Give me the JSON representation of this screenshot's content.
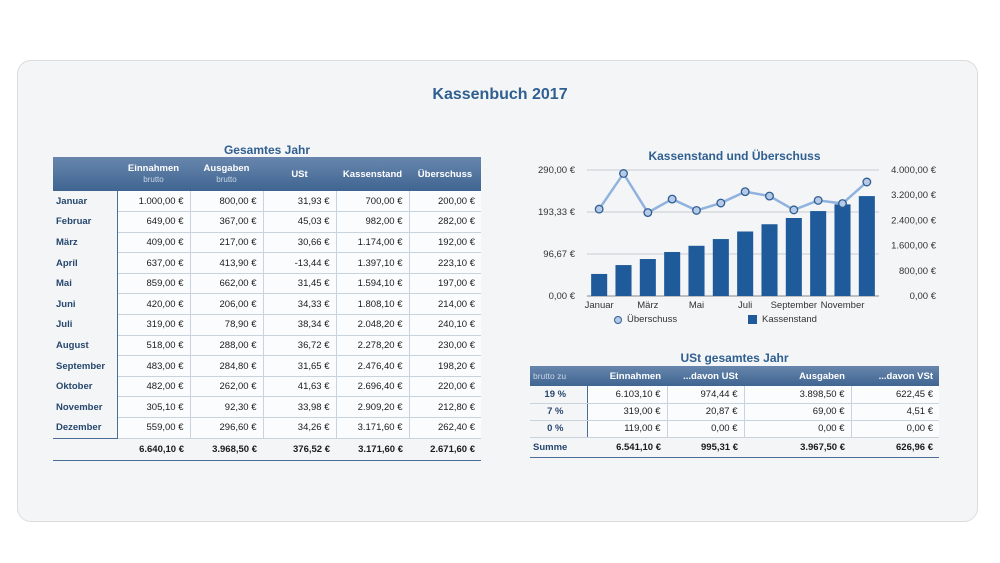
{
  "title": "Kassenbuch 2017",
  "year_table": {
    "title": "Gesamtes Jahr",
    "headers": [
      {
        "label": "",
        "sub": ""
      },
      {
        "label": "Einnahmen",
        "sub": "brutto"
      },
      {
        "label": "Ausgaben",
        "sub": "brutto"
      },
      {
        "label": "USt",
        "sub": ""
      },
      {
        "label": "Kassenstand",
        "sub": ""
      },
      {
        "label": "Überschuss",
        "sub": ""
      }
    ],
    "rows": [
      [
        "Januar",
        "1.000,00 €",
        "800,00 €",
        "31,93 €",
        "700,00 €",
        "200,00 €"
      ],
      [
        "Februar",
        "649,00 €",
        "367,00 €",
        "45,03 €",
        "982,00 €",
        "282,00 €"
      ],
      [
        "März",
        "409,00 €",
        "217,00 €",
        "30,66 €",
        "1.174,00 €",
        "192,00 €"
      ],
      [
        "April",
        "637,00 €",
        "413,90 €",
        "-13,44 €",
        "1.397,10 €",
        "223,10 €"
      ],
      [
        "Mai",
        "859,00 €",
        "662,00 €",
        "31,45 €",
        "1.594,10 €",
        "197,00 €"
      ],
      [
        "Juni",
        "420,00 €",
        "206,00 €",
        "34,33 €",
        "1.808,10 €",
        "214,00 €"
      ],
      [
        "Juli",
        "319,00 €",
        "78,90 €",
        "38,34 €",
        "2.048,20 €",
        "240,10 €"
      ],
      [
        "August",
        "518,00 €",
        "288,00 €",
        "36,72 €",
        "2.278,20 €",
        "230,00 €"
      ],
      [
        "September",
        "483,00 €",
        "284,80 €",
        "31,65 €",
        "2.476,40 €",
        "198,20 €"
      ],
      [
        "Oktober",
        "482,00 €",
        "262,00 €",
        "41,63 €",
        "2.696,40 €",
        "220,00 €"
      ],
      [
        "November",
        "305,10 €",
        "92,30 €",
        "33,98 €",
        "2.909,20 €",
        "212,80 €"
      ],
      [
        "Dezember",
        "559,00 €",
        "296,60 €",
        "34,26 €",
        "3.171,60 €",
        "262,40 €"
      ]
    ],
    "totals": [
      "",
      "6.640,10 €",
      "3.968,50 €",
      "376,52 €",
      "3.171,60 €",
      "2.671,60 €"
    ]
  },
  "ust_table": {
    "title": "USt gesamtes Jahr",
    "headers": [
      "brutto zu",
      "Einnahmen",
      "...davon USt",
      "Ausgaben",
      "...davon VSt"
    ],
    "rows": [
      [
        "19 %",
        "6.103,10 €",
        "974,44 €",
        "3.898,50 €",
        "622,45 €"
      ],
      [
        "7 %",
        "319,00 €",
        "20,87 €",
        "69,00 €",
        "4,51 €"
      ],
      [
        "0 %",
        "119,00 €",
        "0,00 €",
        "0,00 €",
        "0,00 €"
      ]
    ],
    "totals": [
      "Summe",
      "6.541,10 €",
      "995,31 €",
      "3.967,50 €",
      "626,96 €"
    ]
  },
  "chart_data": {
    "type": "bar",
    "title": "Kassenstand und Überschuss",
    "categories": [
      "Januar",
      "Februar",
      "März",
      "April",
      "Mai",
      "Juni",
      "Juli",
      "August",
      "September",
      "Oktober",
      "November",
      "Dezember"
    ],
    "x_tick_labels": [
      "Januar",
      "März",
      "Mai",
      "Juli",
      "September",
      "November"
    ],
    "series": [
      {
        "name": "Überschuss",
        "type": "line",
        "axis": "left",
        "color": "#8fb2de",
        "values": [
          200.0,
          282.0,
          192.0,
          223.1,
          197.0,
          214.0,
          240.1,
          230.0,
          198.2,
          220.0,
          212.8,
          262.4
        ]
      },
      {
        "name": "Kassenstand",
        "type": "bar",
        "axis": "right",
        "color": "#1f5b9b",
        "values": [
          700.0,
          982.0,
          1174.0,
          1397.1,
          1594.1,
          1808.1,
          2048.2,
          2278.2,
          2476.4,
          2696.4,
          2909.2,
          3171.6
        ]
      }
    ],
    "left_axis": {
      "range": [
        0,
        290
      ],
      "ticks": [
        0,
        96.67,
        193.33,
        290
      ],
      "tick_labels": [
        "0,00 €",
        "96,67 €",
        "193,33 €",
        "290,00 €"
      ]
    },
    "right_axis": {
      "range": [
        0,
        4000
      ],
      "ticks": [
        0,
        800,
        1600,
        2400,
        3200,
        4000
      ],
      "tick_labels": [
        "0,00 €",
        "800,00 €",
        "1.600,00 €",
        "2.400,00 €",
        "3.200,00 €",
        "4.000,00 €"
      ]
    },
    "legend_position": "bottom",
    "grid": true
  }
}
